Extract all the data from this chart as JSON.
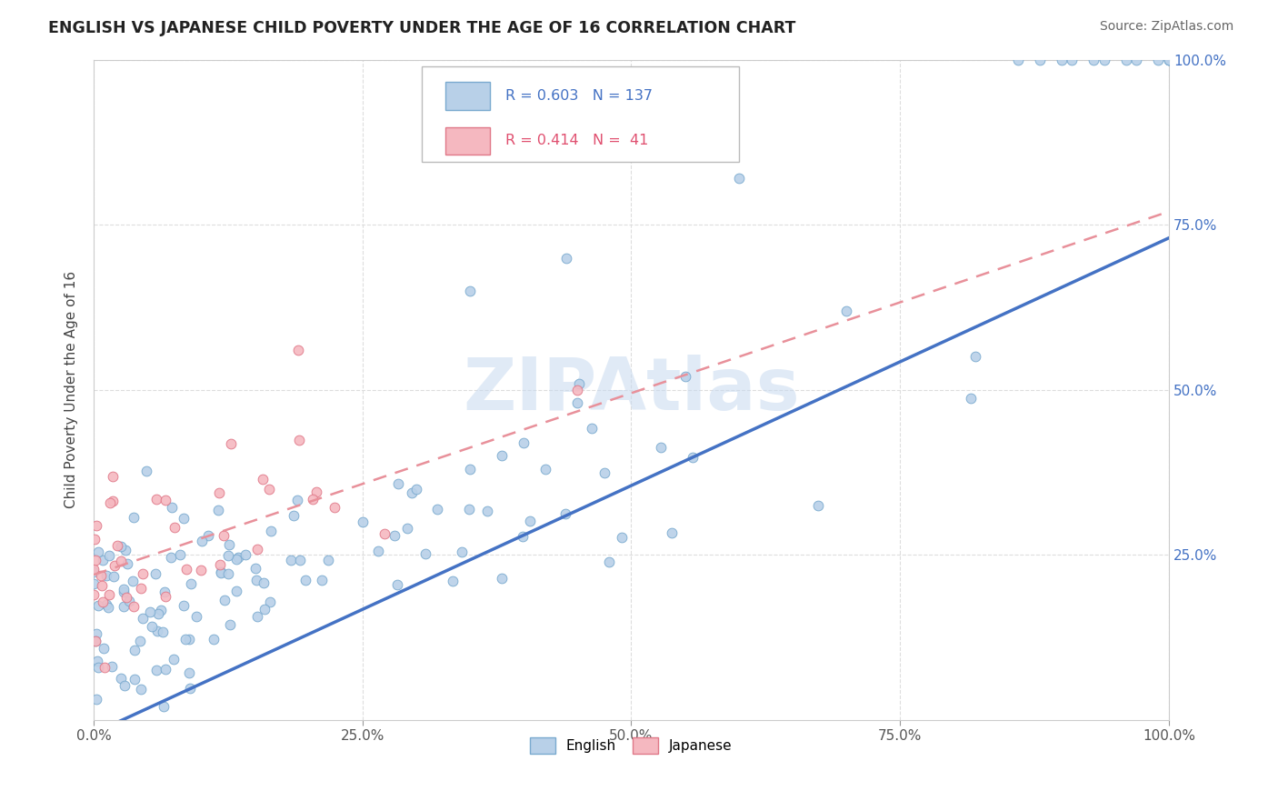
{
  "title": "ENGLISH VS JAPANESE CHILD POVERTY UNDER THE AGE OF 16 CORRELATION CHART",
  "source": "Source: ZipAtlas.com",
  "ylabel": "Child Poverty Under the Age of 16",
  "xlim": [
    0,
    1
  ],
  "ylim": [
    0,
    1
  ],
  "xtick_labels": [
    "0.0%",
    "25.0%",
    "50.0%",
    "75.0%",
    "100.0%"
  ],
  "xtick_vals": [
    0,
    0.25,
    0.5,
    0.75,
    1.0
  ],
  "ytick_labels": [
    "25.0%",
    "50.0%",
    "75.0%",
    "100.0%"
  ],
  "ytick_vals": [
    0.25,
    0.5,
    0.75,
    1.0
  ],
  "english_color": "#b8d0e8",
  "english_edge_color": "#7aaacf",
  "japanese_color": "#f5b8c0",
  "japanese_edge_color": "#e07888",
  "english_R": 0.603,
  "english_N": 137,
  "japanese_R": 0.414,
  "japanese_N": 41,
  "legend_color_english": "#4472c4",
  "legend_color_japanese": "#e05070",
  "blue_line_color": "#4472c4",
  "pink_dashed_color": "#e8909a",
  "watermark": "ZIPAtlas",
  "watermark_color": "#c8daf0",
  "tick_color_right": "#4472c4",
  "tick_color_bottom": "#555555"
}
